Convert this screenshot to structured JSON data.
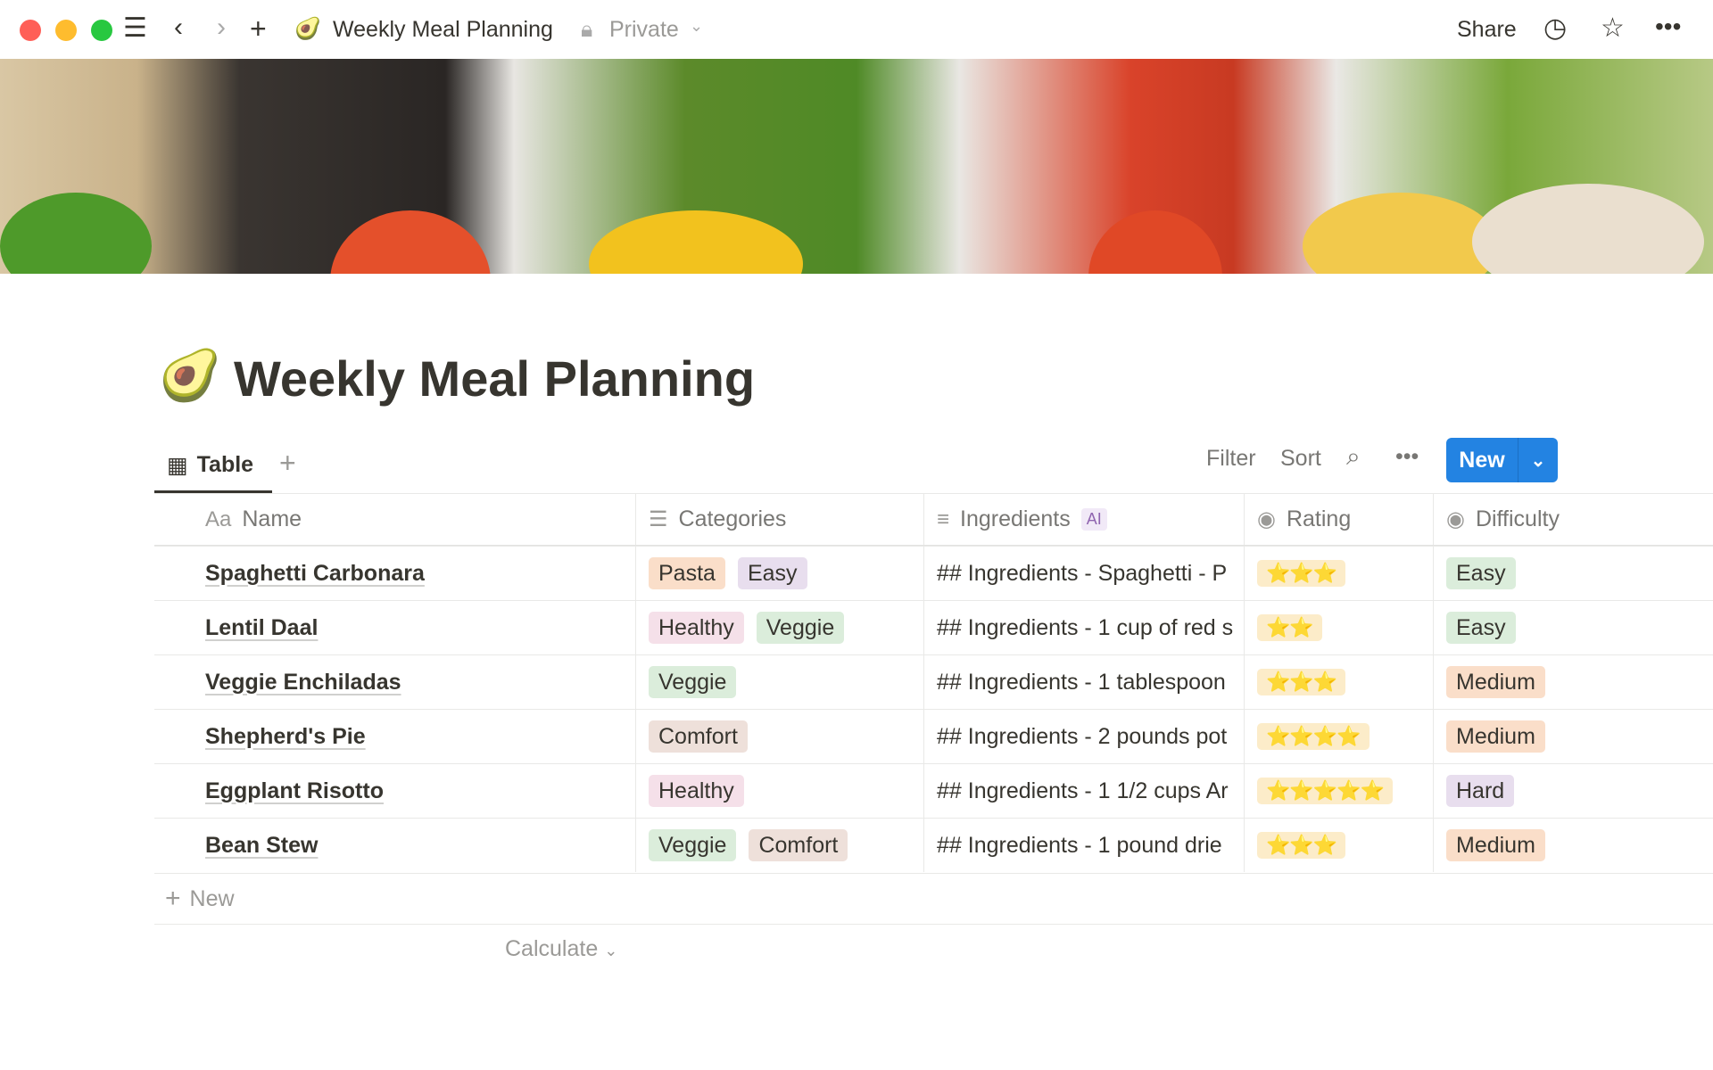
{
  "window": {
    "traffic_lights": [
      "#ff5f57",
      "#febc2e",
      "#28c840"
    ]
  },
  "topbar": {
    "page_icon": "🥑",
    "title": "Weekly Meal Planning",
    "privacy": "Private",
    "share": "Share"
  },
  "page": {
    "icon": "🥑",
    "title": "Weekly Meal Planning"
  },
  "view": {
    "tab_label": "Table",
    "filter": "Filter",
    "sort": "Sort",
    "new_label": "New",
    "accent": "#2383e2"
  },
  "columns": [
    {
      "label": "Name",
      "icon": "Aa"
    },
    {
      "label": "Categories",
      "icon": "list-icon"
    },
    {
      "label": "Ingredients",
      "icon": "text-icon",
      "badge": "AI"
    },
    {
      "label": "Rating",
      "icon": "select-icon"
    },
    {
      "label": "Difficulty",
      "icon": "select-icon"
    }
  ],
  "rows": [
    {
      "name": "Spaghetti Carbonara",
      "categories": [
        "Pasta",
        "Easy"
      ],
      "ingredients": "## Ingredients - Spaghetti - P",
      "rating": "⭐⭐⭐",
      "difficulty": "Easy"
    },
    {
      "name": "Lentil Daal",
      "categories": [
        "Healthy",
        "Veggie"
      ],
      "ingredients": "## Ingredients - 1 cup of red s",
      "rating": "⭐⭐",
      "difficulty": "Easy"
    },
    {
      "name": "Veggie Enchiladas",
      "categories": [
        "Veggie"
      ],
      "ingredients": "## Ingredients - 1 tablespoon",
      "rating": "⭐⭐⭐",
      "difficulty": "Medium"
    },
    {
      "name": "Shepherd's Pie",
      "categories": [
        "Comfort"
      ],
      "ingredients": "## Ingredients - 2 pounds pot",
      "rating": "⭐⭐⭐⭐",
      "difficulty": "Medium"
    },
    {
      "name": "Eggplant Risotto",
      "categories": [
        "Healthy"
      ],
      "ingredients": "## Ingredients - 1 1/2 cups Ar",
      "rating": "⭐⭐⭐⭐⭐",
      "difficulty": "Hard"
    },
    {
      "name": "Bean Stew",
      "categories": [
        "Veggie",
        "Comfort"
      ],
      "ingredients": "## Ingredients - 1 pound drie",
      "rating": "⭐⭐⭐",
      "difficulty": "Medium"
    }
  ],
  "tag_colors": {
    "Pasta": "#fadec9",
    "Easy": "#e8deee",
    "Healthy": "#f5e0e9",
    "Veggie": "#dbeddb",
    "Comfort": "#eee0da"
  },
  "difficulty_colors": {
    "Easy": "#dbeddb",
    "Medium": "#fadec9",
    "Hard": "#e8deee"
  },
  "footer": {
    "new_row": "New",
    "calculate": "Calculate"
  }
}
